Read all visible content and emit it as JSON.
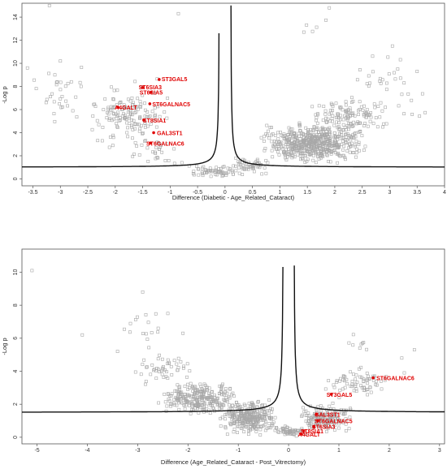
{
  "chart_data": [
    {
      "type": "scatter",
      "xlabel": "Difference (Diabetic - Age_Related_Cataract)",
      "ylabel": "-Log p",
      "xlim": [
        -3.7,
        4.0
      ],
      "ylim": [
        -0.6,
        15.2
      ],
      "xticks": [
        -3.5,
        -3,
        -2.5,
        -2,
        -1.5,
        -1,
        -0.5,
        0,
        0.5,
        1,
        1.5,
        2,
        2.5,
        3,
        3.5,
        4
      ],
      "yticks": [
        0,
        2,
        4,
        6,
        8,
        10,
        12,
        14
      ],
      "grid": false,
      "legend": "none",
      "point_color": "#a8a8a8",
      "highlight_color": "#e00000",
      "threshold_curve": {
        "s0": 0.1,
        "c": 1.0
      },
      "highlighted": [
        {
          "name": "ST3GAL5",
          "x": -1.2,
          "y": 8.6
        },
        {
          "name": "ST6SIA3",
          "x": -1.5,
          "y": 7.9
        },
        {
          "name": "ST6SIA5",
          "x": -1.35,
          "y": 7.5
        },
        {
          "name": "ST6GALNAC5",
          "x": -1.37,
          "y": 6.5
        },
        {
          "name": "A4GALT",
          "x": -1.95,
          "y": 6.2
        },
        {
          "name": "ST8SIA1",
          "x": -1.48,
          "y": 5.1
        },
        {
          "name": "GAL3ST1",
          "x": -1.3,
          "y": 4.0
        },
        {
          "name": "ST6GALNAC6",
          "x": -1.36,
          "y": 3.1
        }
      ],
      "clusters": [
        {
          "n": 150,
          "x": [
            -2.6,
            -0.9
          ],
          "y": [
            2.2,
            9.0
          ]
        },
        {
          "n": 30,
          "x": [
            -3.5,
            -2.4
          ],
          "y": [
            3.8,
            10.2
          ]
        },
        {
          "n": 30,
          "x": [
            -1.9,
            -0.6
          ],
          "y": [
            1.0,
            4.0
          ]
        },
        {
          "n": 60,
          "x": [
            -0.7,
            0.4
          ],
          "y": [
            0.0,
            1.3
          ]
        },
        {
          "n": 50,
          "x": [
            0.1,
            0.9
          ],
          "y": [
            0.3,
            2.0
          ]
        },
        {
          "n": 560,
          "x": [
            0.6,
            2.6
          ],
          "y": [
            0.9,
            5.2
          ]
        },
        {
          "n": 130,
          "x": [
            1.4,
            3.0
          ],
          "y": [
            3.2,
            7.4
          ]
        },
        {
          "n": 22,
          "x": [
            2.2,
            3.6
          ],
          "y": [
            5.5,
            12.0
          ]
        },
        {
          "n": 5,
          "x": [
            1.2,
            2.0
          ],
          "y": [
            12.0,
            14.8
          ]
        },
        {
          "n": 10,
          "x": [
            3.0,
            3.7
          ],
          "y": [
            3.8,
            8.5
          ]
        }
      ],
      "outliers": [
        [
          -3.2,
          15.0
        ],
        [
          -3.6,
          9.6
        ],
        [
          -3.0,
          10.2
        ],
        [
          -3.1,
          9.0
        ],
        [
          -2.8,
          8.4
        ],
        [
          -0.85,
          14.3
        ],
        [
          1.9,
          14.8
        ],
        [
          3.05,
          11.5
        ],
        [
          3.5,
          9.3
        ]
      ]
    },
    {
      "type": "scatter",
      "xlabel": "Difference (Age_Related_Cataract - Post_Vitrectomy)",
      "ylabel": "-Log p",
      "xlim": [
        -5.3,
        3.1
      ],
      "ylim": [
        -0.4,
        11.4
      ],
      "xticks": [
        -5,
        -4,
        -3,
        -2,
        -1,
        0,
        1,
        2,
        3
      ],
      "yticks": [
        0,
        2,
        4,
        6,
        8,
        10
      ],
      "grid": false,
      "legend": "none",
      "point_color": "#a8a8a8",
      "highlight_color": "#e00000",
      "threshold_curve": {
        "s0": 0.1,
        "c": 1.5
      },
      "highlighted": [
        {
          "name": "ST6GALNAC6",
          "x": 1.68,
          "y": 3.6
        },
        {
          "name": "ST3GAL5",
          "x": 0.85,
          "y": 2.6
        },
        {
          "name": "ST6GALNAC5",
          "x": 0.58,
          "y": 1.0
        },
        {
          "name": "GAL3ST1",
          "x": 0.55,
          "y": 1.4
        },
        {
          "name": "ST6SIA3",
          "x": 0.5,
          "y": 0.65
        },
        {
          "name": "ST8SIA1",
          "x": 0.3,
          "y": 0.38
        },
        {
          "name": "A4GALT",
          "x": 0.25,
          "y": 0.2
        }
      ],
      "clusters": [
        {
          "n": 260,
          "x": [
            -2.6,
            -1.0
          ],
          "y": [
            1.2,
            3.6
          ]
        },
        {
          "n": 300,
          "x": [
            -1.4,
            -0.15
          ],
          "y": [
            0.0,
            2.4
          ]
        },
        {
          "n": 50,
          "x": [
            -3.2,
            -1.8
          ],
          "y": [
            2.8,
            5.5
          ]
        },
        {
          "n": 15,
          "x": [
            -3.8,
            -2.3
          ],
          "y": [
            5.0,
            8.5
          ]
        },
        {
          "n": 60,
          "x": [
            -0.3,
            0.35
          ],
          "y": [
            0.0,
            0.8
          ]
        },
        {
          "n": 160,
          "x": [
            0.2,
            1.3
          ],
          "y": [
            0.1,
            2.2
          ]
        },
        {
          "n": 70,
          "x": [
            0.7,
            2.0
          ],
          "y": [
            2.0,
            4.6
          ]
        },
        {
          "n": 8,
          "x": [
            1.0,
            1.8
          ],
          "y": [
            4.8,
            6.6
          ]
        }
      ],
      "outliers": [
        [
          -5.1,
          10.1
        ],
        [
          -2.9,
          8.8
        ],
        [
          -4.1,
          6.2
        ],
        [
          -2.4,
          7.5
        ],
        [
          -2.1,
          6.3
        ],
        [
          2.5,
          5.3
        ],
        [
          2.25,
          4.8
        ],
        [
          2.3,
          3.9
        ],
        [
          -3.4,
          5.2
        ]
      ]
    }
  ]
}
